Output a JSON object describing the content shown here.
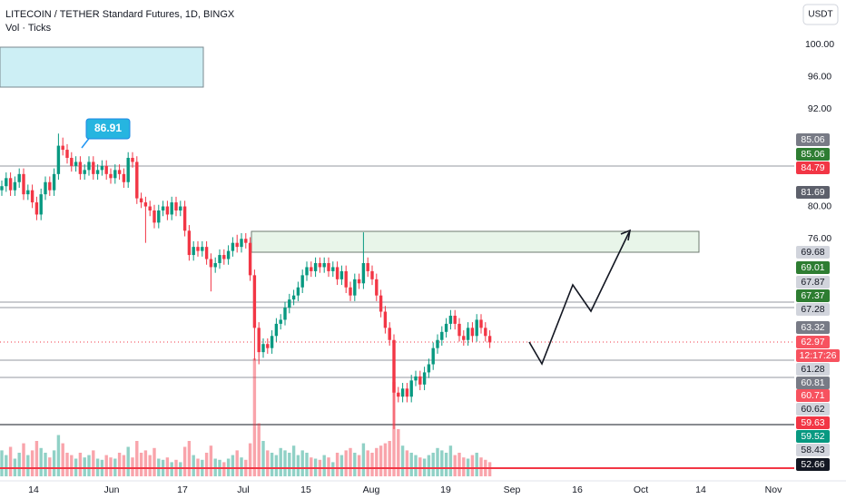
{
  "chart_data": {
    "type": "candlestick",
    "title": "LITECOIN / TETHER Standard Futures, 1D, BINGX",
    "subtitle": "Vol · Ticks",
    "currency": "USDT",
    "annotation": 86.91,
    "up_color": "#089981",
    "down_color": "#f23645",
    "ylim": [
      46.1,
      105.5
    ],
    "yticks": [
      {
        "value": 100,
        "label": "100.00"
      },
      {
        "value": 96,
        "label": "96.00"
      },
      {
        "value": 92,
        "label": "92.00"
      },
      {
        "value": 80,
        "label": "80.00"
      },
      {
        "value": 76,
        "label": "76.00"
      }
    ],
    "xtick_labels": [
      "14",
      "Jun",
      "17",
      "Jul",
      "15",
      "Aug",
      "19",
      "Sep",
      "16",
      "Oct",
      "14",
      "Nov"
    ],
    "open": [
      82.0,
      82.5,
      83.5,
      82.0,
      83.0,
      84.0,
      81.5,
      82.0,
      80.5,
      79.0,
      81.5,
      83.0,
      82.0,
      84.0,
      87.5,
      87.0,
      86.0,
      85.0,
      85.5,
      84.0,
      84.5,
      85.5,
      84.0,
      84.5,
      85.0,
      84.0,
      83.5,
      84.5,
      84.0,
      83.0,
      86.0,
      85.5,
      81.0,
      80.5,
      80.0,
      79.5,
      78.0,
      79.5,
      80.0,
      79.0,
      80.5,
      79.5,
      80.0,
      77.0,
      74.0,
      75.0,
      74.5,
      75.0,
      73.5,
      72.5,
      73.0,
      74.0,
      73.5,
      74.5,
      75.5,
      75.0,
      76.0,
      75.5,
      71.5,
      65.0,
      62.0,
      63.0,
      62.5,
      64.0,
      65.5,
      66.0,
      67.5,
      68.5,
      69.0,
      70.0,
      71.5,
      72.5,
      72.0,
      73.0,
      72.5,
      73.0,
      72.0,
      72.5,
      71.0,
      72.0,
      70.0,
      69.0,
      71.0,
      70.5,
      73.0,
      72.0,
      71.0,
      69.0,
      67.0,
      65.0,
      63.5,
      57.0,
      56.5,
      57.5,
      56.5,
      58.5,
      59.0,
      58.0,
      59.5,
      60.5,
      62.5,
      63.5,
      64.5,
      65.5,
      66.5,
      65.5,
      64.0,
      63.5,
      65.0,
      64.0,
      66.0,
      65.0,
      64.0
    ],
    "high": [
      83.2,
      84.2,
      84.2,
      83.7,
      84.7,
      84.7,
      82.7,
      82.7,
      81.2,
      82.2,
      83.7,
      83.7,
      84.7,
      89.0,
      88.5,
      87.7,
      86.7,
      86.2,
      86.2,
      85.2,
      86.2,
      86.2,
      85.2,
      85.7,
      85.7,
      84.7,
      85.2,
      85.2,
      84.7,
      86.7,
      86.7,
      86.2,
      81.7,
      81.2,
      80.7,
      80.2,
      80.2,
      80.7,
      80.7,
      81.2,
      81.2,
      80.7,
      80.7,
      77.7,
      75.7,
      75.7,
      75.7,
      75.7,
      74.2,
      73.7,
      74.7,
      74.7,
      75.2,
      76.2,
      76.5,
      76.7,
      76.7,
      76.2,
      72.2,
      65.7,
      63.7,
      63.7,
      64.7,
      66.2,
      66.7,
      68.2,
      69.2,
      69.7,
      70.7,
      72.2,
      73.2,
      73.2,
      73.7,
      73.7,
      73.7,
      73.7,
      73.2,
      73.2,
      72.7,
      72.7,
      70.7,
      71.7,
      71.7,
      76.8,
      73.7,
      72.7,
      71.7,
      69.7,
      67.7,
      65.7,
      64.2,
      57.7,
      58.2,
      58.2,
      59.2,
      59.7,
      59.7,
      60.2,
      61.2,
      63.2,
      64.2,
      65.2,
      66.2,
      67.2,
      67.2,
      66.2,
      64.7,
      65.7,
      65.7,
      66.7,
      66.7,
      65.7,
      64.7
    ],
    "low": [
      81.3,
      81.8,
      81.3,
      81.3,
      82.3,
      80.8,
      80.8,
      79.8,
      78.3,
      78.3,
      80.8,
      81.3,
      81.3,
      83.3,
      86.3,
      85.3,
      84.3,
      84.3,
      83.3,
      83.3,
      83.8,
      83.3,
      83.3,
      83.8,
      83.3,
      82.8,
      82.8,
      83.3,
      82.3,
      82.3,
      84.8,
      80.3,
      79.8,
      75.5,
      78.8,
      77.3,
      77.3,
      78.8,
      78.3,
      78.3,
      78.8,
      78.8,
      76.3,
      73.3,
      73.3,
      73.8,
      73.8,
      72.8,
      69.5,
      71.8,
      72.3,
      72.8,
      72.8,
      73.8,
      74.3,
      74.3,
      74.8,
      70.8,
      61.0,
      60.5,
      61.3,
      61.8,
      61.8,
      63.3,
      64.8,
      65.3,
      66.8,
      67.8,
      68.3,
      69.3,
      70.8,
      71.3,
      71.3,
      71.8,
      71.8,
      71.3,
      71.3,
      70.3,
      70.3,
      69.3,
      68.3,
      68.3,
      69.8,
      69.8,
      71.3,
      70.3,
      68.3,
      66.3,
      64.3,
      62.8,
      52.5,
      55.8,
      55.8,
      55.8,
      55.8,
      57.8,
      57.3,
      57.3,
      58.8,
      59.8,
      61.8,
      62.8,
      63.8,
      64.8,
      64.8,
      63.3,
      62.8,
      62.8,
      63.3,
      63.3,
      64.3,
      63.3,
      62.5
    ],
    "close": [
      82.5,
      83.5,
      82.0,
      83.0,
      84.0,
      81.5,
      82.0,
      80.5,
      79.0,
      81.5,
      83.0,
      82.0,
      84.0,
      87.5,
      87.0,
      86.0,
      85.0,
      85.5,
      84.0,
      84.5,
      85.5,
      84.0,
      84.5,
      85.0,
      84.0,
      83.5,
      84.5,
      84.0,
      83.0,
      86.0,
      85.5,
      81.0,
      80.5,
      80.0,
      79.5,
      78.0,
      79.5,
      80.0,
      79.0,
      80.5,
      79.5,
      80.0,
      77.0,
      74.0,
      75.0,
      74.5,
      75.0,
      73.5,
      72.5,
      73.0,
      74.0,
      73.5,
      74.5,
      75.5,
      75.0,
      76.0,
      75.5,
      71.5,
      65.0,
      62.0,
      63.0,
      62.5,
      64.0,
      65.5,
      66.0,
      67.5,
      68.5,
      69.0,
      70.0,
      71.5,
      72.5,
      72.0,
      73.0,
      72.5,
      73.0,
      72.0,
      72.5,
      71.0,
      72.0,
      70.0,
      69.0,
      71.0,
      70.5,
      73.0,
      72.0,
      71.0,
      69.0,
      67.0,
      65.0,
      63.5,
      57.0,
      56.5,
      57.5,
      56.5,
      58.5,
      59.0,
      58.0,
      59.5,
      60.5,
      62.5,
      63.5,
      64.5,
      65.5,
      66.5,
      65.5,
      64.0,
      63.5,
      65.0,
      64.0,
      66.0,
      65.0,
      64.0,
      63.2
    ],
    "volume": [
      22,
      18,
      25,
      15,
      20,
      28,
      18,
      22,
      30,
      24,
      20,
      16,
      22,
      35,
      28,
      20,
      18,
      15,
      20,
      16,
      18,
      22,
      15,
      14,
      18,
      16,
      15,
      20,
      18,
      25,
      16,
      30,
      20,
      22,
      18,
      24,
      15,
      14,
      16,
      12,
      14,
      12,
      25,
      30,
      18,
      15,
      14,
      20,
      26,
      15,
      14,
      12,
      15,
      18,
      22,
      16,
      14,
      28,
      100,
      45,
      30,
      22,
      20,
      18,
      24,
      22,
      20,
      26,
      18,
      22,
      20,
      16,
      15,
      14,
      18,
      16,
      12,
      20,
      18,
      22,
      24,
      20,
      18,
      28,
      22,
      20,
      24,
      26,
      28,
      30,
      80,
      40,
      26,
      22,
      20,
      18,
      16,
      15,
      18,
      20,
      24,
      22,
      20,
      26,
      18,
      20,
      16,
      15,
      18,
      20,
      16,
      14,
      12
    ],
    "price_labels": [
      {
        "value": 85.06,
        "color": "#787b86"
      },
      {
        "value": 85.06,
        "color": "#2e7d32"
      },
      {
        "value": 84.79,
        "color": "#f23645"
      },
      {
        "value": 81.69,
        "color": "#5d606b"
      },
      {
        "value": 69.68,
        "color": "#d1d4dc"
      },
      {
        "value": 69.01,
        "color": "#2e7d32"
      },
      {
        "value": 67.87,
        "color": "#d1d4dc"
      },
      {
        "value": 67.37,
        "color": "#2e7d32"
      },
      {
        "value": 67.28,
        "color": "#d1d4dc"
      },
      {
        "value": 63.32,
        "color": "#787b86"
      },
      {
        "value": 62.97,
        "color": "#f7525f"
      },
      {
        "value": 61.28,
        "color": "#d1d4dc"
      },
      {
        "value": 60.81,
        "color": "#787b86"
      },
      {
        "value": 60.71,
        "color": "#f7525f"
      },
      {
        "value": 60.62,
        "color": "#d1d4dc"
      },
      {
        "value": 59.63,
        "color": "#f23645"
      },
      {
        "value": 59.52,
        "color": "#089981"
      },
      {
        "value": 58.43,
        "color": "#d1d4dc"
      },
      {
        "value": 52.66,
        "color": "#131722"
      }
    ],
    "countdown": "12:17:26"
  }
}
